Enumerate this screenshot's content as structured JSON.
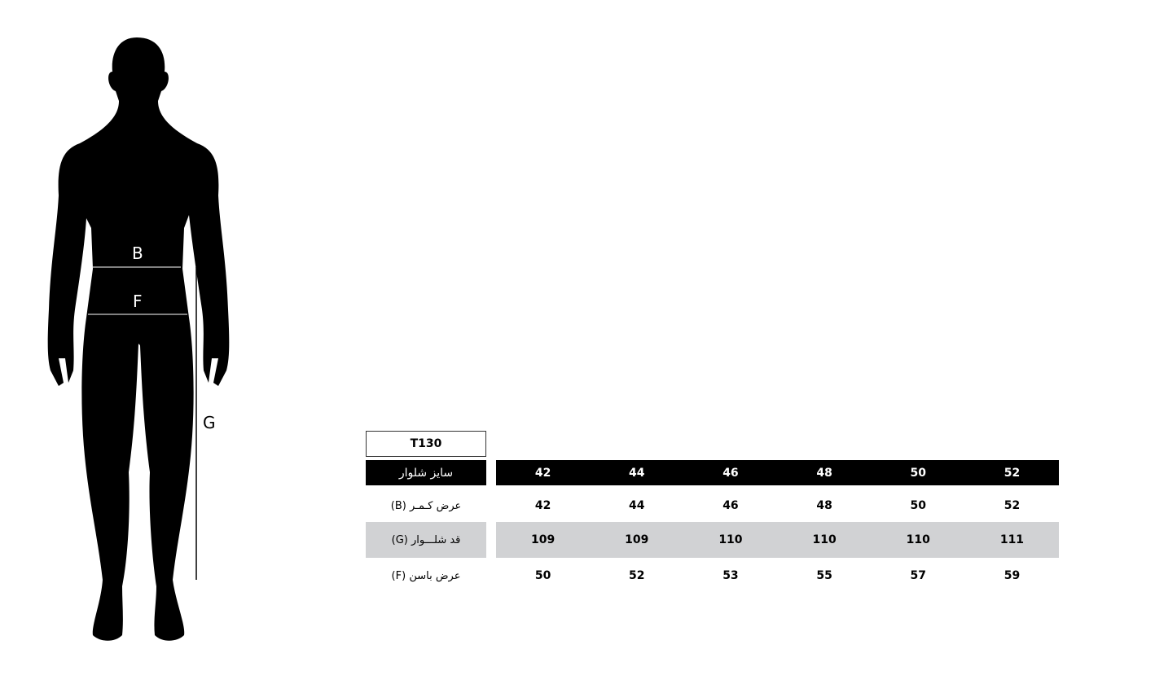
{
  "figure": {
    "labels": {
      "b": "B",
      "f": "F",
      "g": "G"
    }
  },
  "table": {
    "code": "T130",
    "header": {
      "label": "سایز شلوار",
      "sizes": [
        "42",
        "44",
        "46",
        "48",
        "50",
        "52"
      ]
    },
    "rows": [
      {
        "label": "عرض کـمـر (B)",
        "values": [
          "42",
          "44",
          "46",
          "48",
          "50",
          "52"
        ],
        "shaded": false
      },
      {
        "label": "قد شلـــوار (G)",
        "values": [
          "109",
          "109",
          "110",
          "110",
          "110",
          "111"
        ],
        "shaded": true
      },
      {
        "label": "عرض باسن (F)",
        "values": [
          "50",
          "52",
          "53",
          "55",
          "57",
          "59"
        ],
        "shaded": false
      }
    ]
  },
  "colors": {
    "header_bg": "#000000",
    "shaded_row": "#d1d2d4"
  }
}
